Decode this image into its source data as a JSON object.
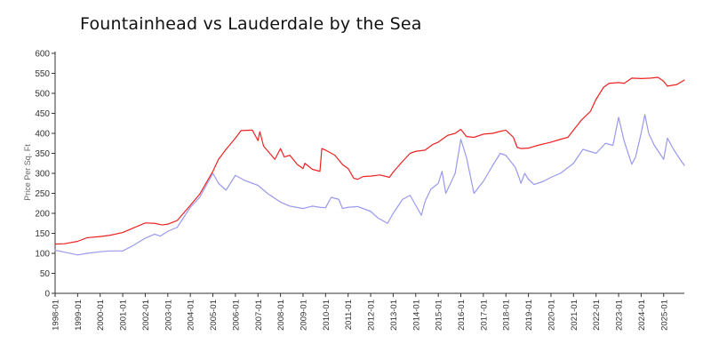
{
  "chart_data": {
    "type": "line",
    "title": "Fountainhead vs Lauderdale by the Sea",
    "xlabel": "",
    "ylabel": "Price Per Sq. Ft",
    "ylim": [
      0,
      600
    ],
    "yticks": [
      0,
      50,
      100,
      150,
      200,
      250,
      300,
      350,
      400,
      450,
      500,
      550,
      600
    ],
    "xlim": [
      "1998-01",
      "2025-12"
    ],
    "xticks": [
      "1998-01",
      "1999-01",
      "2000-01",
      "2001-01",
      "2002-01",
      "2003-01",
      "2004-01",
      "2005-01",
      "2006-01",
      "2007-01",
      "2008-01",
      "2009-01",
      "2010-01",
      "2011-01",
      "2012-01",
      "2013-01",
      "2014-01",
      "2015-01",
      "2016-01",
      "2017-01",
      "2018-01",
      "2019-01",
      "2020-01",
      "2021-01",
      "2022-01",
      "2023-01",
      "2024-01",
      "2025-01"
    ],
    "grid": false,
    "legend": "none",
    "series": [
      {
        "color": "#ee2222",
        "points": [
          [
            "1998-01",
            123
          ],
          [
            "1998-06",
            124
          ],
          [
            "1999-01",
            130
          ],
          [
            "1999-06",
            139
          ],
          [
            "2000-01",
            142
          ],
          [
            "2000-06",
            145
          ],
          [
            "2001-01",
            152
          ],
          [
            "2001-06",
            162
          ],
          [
            "2002-01",
            176
          ],
          [
            "2002-06",
            175
          ],
          [
            "2002-10",
            171
          ],
          [
            "2003-01",
            173
          ],
          [
            "2003-06",
            182
          ],
          [
            "2004-01",
            220
          ],
          [
            "2004-06",
            248
          ],
          [
            "2005-01",
            305
          ],
          [
            "2005-04",
            335
          ],
          [
            "2005-08",
            360
          ],
          [
            "2006-01",
            388
          ],
          [
            "2006-04",
            407
          ],
          [
            "2006-10",
            408
          ],
          [
            "2007-01",
            382
          ],
          [
            "2007-02",
            404
          ],
          [
            "2007-04",
            368
          ],
          [
            "2007-10",
            335
          ],
          [
            "2008-01",
            362
          ],
          [
            "2008-03",
            341
          ],
          [
            "2008-06",
            345
          ],
          [
            "2008-10",
            322
          ],
          [
            "2009-01",
            312
          ],
          [
            "2009-02",
            325
          ],
          [
            "2009-06",
            310
          ],
          [
            "2009-10",
            305
          ],
          [
            "2009-11",
            362
          ],
          [
            "2010-01",
            358
          ],
          [
            "2010-06",
            345
          ],
          [
            "2010-10",
            322
          ],
          [
            "2011-01",
            312
          ],
          [
            "2011-04",
            288
          ],
          [
            "2011-06",
            285
          ],
          [
            "2011-09",
            292
          ],
          [
            "2012-01",
            293
          ],
          [
            "2012-06",
            296
          ],
          [
            "2012-11",
            290
          ],
          [
            "2013-01",
            303
          ],
          [
            "2013-06",
            330
          ],
          [
            "2013-10",
            350
          ],
          [
            "2014-01",
            355
          ],
          [
            "2014-06",
            358
          ],
          [
            "2014-10",
            372
          ],
          [
            "2015-01",
            378
          ],
          [
            "2015-06",
            395
          ],
          [
            "2015-10",
            400
          ],
          [
            "2016-01",
            410
          ],
          [
            "2016-04",
            392
          ],
          [
            "2016-08",
            390
          ],
          [
            "2017-01",
            398
          ],
          [
            "2017-06",
            400
          ],
          [
            "2017-10",
            405
          ],
          [
            "2018-01",
            408
          ],
          [
            "2018-05",
            390
          ],
          [
            "2018-07",
            365
          ],
          [
            "2018-09",
            362
          ],
          [
            "2019-01",
            363
          ],
          [
            "2019-06",
            370
          ],
          [
            "2020-01",
            378
          ],
          [
            "2020-06",
            385
          ],
          [
            "2020-10",
            390
          ],
          [
            "2021-01",
            408
          ],
          [
            "2021-05",
            432
          ],
          [
            "2021-10",
            455
          ],
          [
            "2022-01",
            485
          ],
          [
            "2022-05",
            515
          ],
          [
            "2022-08",
            525
          ],
          [
            "2023-01",
            527
          ],
          [
            "2023-04",
            525
          ],
          [
            "2023-08",
            538
          ],
          [
            "2024-01",
            537
          ],
          [
            "2024-06",
            538
          ],
          [
            "2024-10",
            540
          ],
          [
            "2025-01",
            530
          ],
          [
            "2025-03",
            518
          ],
          [
            "2025-08",
            522
          ],
          [
            "2025-12",
            533
          ]
        ]
      },
      {
        "color": "#9999ee",
        "points": [
          [
            "1998-01",
            108
          ],
          [
            "1998-06",
            103
          ],
          [
            "1999-01",
            96
          ],
          [
            "1999-06",
            100
          ],
          [
            "2000-01",
            104
          ],
          [
            "2000-06",
            106
          ],
          [
            "2001-01",
            106
          ],
          [
            "2001-06",
            118
          ],
          [
            "2002-01",
            138
          ],
          [
            "2002-06",
            148
          ],
          [
            "2002-09",
            143
          ],
          [
            "2003-01",
            155
          ],
          [
            "2003-06",
            165
          ],
          [
            "2004-01",
            215
          ],
          [
            "2004-06",
            240
          ],
          [
            "2005-01",
            300
          ],
          [
            "2005-04",
            275
          ],
          [
            "2005-08",
            258
          ],
          [
            "2006-01",
            295
          ],
          [
            "2006-06",
            282
          ],
          [
            "2007-01",
            270
          ],
          [
            "2007-06",
            250
          ],
          [
            "2008-01",
            228
          ],
          [
            "2008-06",
            218
          ],
          [
            "2009-01",
            212
          ],
          [
            "2009-06",
            218
          ],
          [
            "2009-10",
            215
          ],
          [
            "2010-01",
            214
          ],
          [
            "2010-04",
            240
          ],
          [
            "2010-08",
            235
          ],
          [
            "2010-10",
            212
          ],
          [
            "2011-01",
            215
          ],
          [
            "2011-06",
            217
          ],
          [
            "2012-01",
            205
          ],
          [
            "2012-05",
            188
          ],
          [
            "2012-10",
            175
          ],
          [
            "2013-01",
            200
          ],
          [
            "2013-06",
            235
          ],
          [
            "2013-10",
            245
          ],
          [
            "2014-01",
            220
          ],
          [
            "2014-04",
            195
          ],
          [
            "2014-06",
            230
          ],
          [
            "2014-09",
            260
          ],
          [
            "2015-01",
            275
          ],
          [
            "2015-03",
            305
          ],
          [
            "2015-05",
            250
          ],
          [
            "2015-10",
            300
          ],
          [
            "2016-01",
            385
          ],
          [
            "2016-04",
            340
          ],
          [
            "2016-08",
            250
          ],
          [
            "2017-01",
            280
          ],
          [
            "2017-06",
            320
          ],
          [
            "2017-10",
            350
          ],
          [
            "2018-01",
            345
          ],
          [
            "2018-06",
            315
          ],
          [
            "2018-08",
            290
          ],
          [
            "2018-09",
            275
          ],
          [
            "2018-11",
            300
          ],
          [
            "2019-01",
            285
          ],
          [
            "2019-04",
            272
          ],
          [
            "2019-09",
            280
          ],
          [
            "2020-01",
            290
          ],
          [
            "2020-06",
            300
          ],
          [
            "2021-01",
            325
          ],
          [
            "2021-06",
            360
          ],
          [
            "2022-01",
            350
          ],
          [
            "2022-06",
            375
          ],
          [
            "2022-10",
            370
          ],
          [
            "2023-01",
            440
          ],
          [
            "2023-04",
            380
          ],
          [
            "2023-08",
            323
          ],
          [
            "2023-10",
            340
          ],
          [
            "2024-01",
            400
          ],
          [
            "2024-03",
            447
          ],
          [
            "2024-05",
            400
          ],
          [
            "2024-08",
            370
          ],
          [
            "2025-01",
            335
          ],
          [
            "2025-03",
            388
          ],
          [
            "2025-06",
            362
          ],
          [
            "2025-09",
            340
          ],
          [
            "2025-12",
            320
          ]
        ]
      }
    ]
  }
}
